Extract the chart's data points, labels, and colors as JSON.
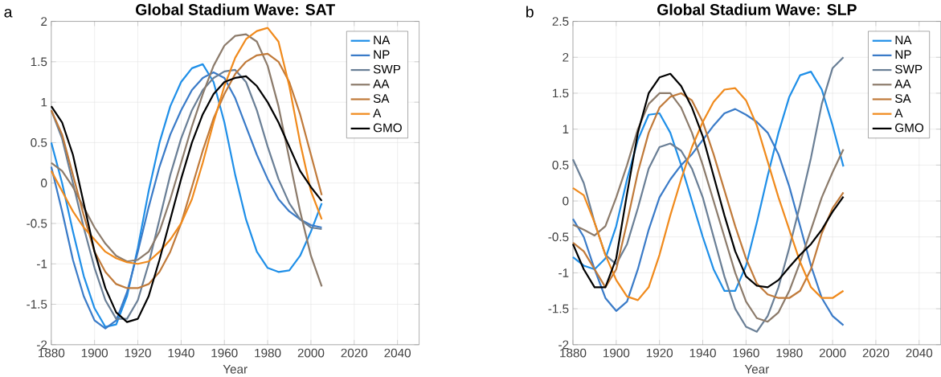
{
  "chart_data": [
    {
      "type": "line",
      "title": "Global Stadium Wave: SAT",
      "xlabel": "Year",
      "annotations": [
        "a"
      ],
      "x": [
        1880,
        1885,
        1890,
        1895,
        1900,
        1905,
        1910,
        1915,
        1920,
        1925,
        1930,
        1935,
        1940,
        1945,
        1950,
        1955,
        1960,
        1965,
        1970,
        1975,
        1980,
        1985,
        1990,
        1995,
        2000,
        2005
      ],
      "xlim": [
        1880,
        2050
      ],
      "xticks": [
        1880,
        1900,
        1920,
        1940,
        1960,
        1980,
        2000,
        2020,
        2040
      ],
      "ylim": [
        -2,
        2
      ],
      "yticks": [
        -2,
        -1.5,
        -1,
        -0.5,
        0,
        0.5,
        1,
        1.5,
        2
      ],
      "grid": true,
      "legend": "top right",
      "marker": "none",
      "line_style": "solid",
      "series": [
        {
          "name": "NA",
          "color": "#1f8fe8",
          "values": [
            0.5,
            0.0,
            -0.6,
            -1.15,
            -1.55,
            -1.78,
            -1.75,
            -1.4,
            -0.8,
            -0.1,
            0.5,
            0.95,
            1.25,
            1.42,
            1.47,
            1.25,
            0.75,
            0.1,
            -0.45,
            -0.85,
            -1.05,
            -1.1,
            -1.08,
            -0.9,
            -0.6,
            -0.25
          ]
        },
        {
          "name": "NP",
          "color": "#3a7bc8",
          "values": [
            0.2,
            -0.35,
            -0.95,
            -1.4,
            -1.7,
            -1.8,
            -1.7,
            -1.35,
            -0.85,
            -0.3,
            0.2,
            0.6,
            0.9,
            1.15,
            1.3,
            1.37,
            1.3,
            1.05,
            0.7,
            0.35,
            0.05,
            -0.2,
            -0.35,
            -0.45,
            -0.52,
            -0.55
          ]
        },
        {
          "name": "SWP",
          "color": "#6a7f96",
          "values": [
            0.9,
            0.55,
            0.0,
            -0.55,
            -1.05,
            -1.45,
            -1.68,
            -1.68,
            -1.45,
            -1.0,
            -0.45,
            0.1,
            0.55,
            0.9,
            1.15,
            1.3,
            1.38,
            1.4,
            1.25,
            0.9,
            0.45,
            0.05,
            -0.25,
            -0.45,
            -0.55,
            -0.57
          ]
        },
        {
          "name": "AA",
          "color": "#8c7b6b",
          "values": [
            0.25,
            0.15,
            -0.05,
            -0.3,
            -0.55,
            -0.75,
            -0.9,
            -0.97,
            -0.95,
            -0.85,
            -0.6,
            -0.2,
            0.25,
            0.7,
            1.1,
            1.45,
            1.7,
            1.82,
            1.84,
            1.75,
            1.45,
            0.95,
            0.3,
            -0.35,
            -0.9,
            -1.28
          ]
        },
        {
          "name": "SA",
          "color": "#c07a3a",
          "values": [
            0.9,
            0.6,
            0.1,
            -0.4,
            -0.85,
            -1.1,
            -1.25,
            -1.3,
            -1.3,
            -1.25,
            -1.1,
            -0.85,
            -0.5,
            -0.05,
            0.4,
            0.8,
            1.1,
            1.35,
            1.5,
            1.58,
            1.6,
            1.5,
            1.25,
            0.85,
            0.35,
            -0.15
          ]
        },
        {
          "name": "A",
          "color": "#f08a1c",
          "values": [
            0.15,
            -0.1,
            -0.35,
            -0.55,
            -0.7,
            -0.85,
            -0.93,
            -0.98,
            -1.0,
            -0.97,
            -0.85,
            -0.7,
            -0.5,
            -0.2,
            0.25,
            0.75,
            1.2,
            1.55,
            1.78,
            1.88,
            1.92,
            1.75,
            1.2,
            0.5,
            -0.1,
            -0.45
          ]
        },
        {
          "name": "GMO",
          "color": "#000000",
          "values": [
            0.95,
            0.75,
            0.35,
            -0.25,
            -0.85,
            -1.3,
            -1.6,
            -1.72,
            -1.68,
            -1.4,
            -0.95,
            -0.45,
            0.05,
            0.5,
            0.85,
            1.1,
            1.25,
            1.3,
            1.32,
            1.2,
            1.0,
            0.75,
            0.45,
            0.15,
            -0.05,
            -0.22
          ]
        }
      ]
    },
    {
      "type": "line",
      "title": "Global Stadium Wave: SLP",
      "xlabel": "Year",
      "annotations": [
        "b"
      ],
      "x": [
        1880,
        1885,
        1890,
        1895,
        1900,
        1905,
        1910,
        1915,
        1920,
        1925,
        1930,
        1935,
        1940,
        1945,
        1950,
        1955,
        1960,
        1965,
        1970,
        1975,
        1980,
        1985,
        1990,
        1995,
        2000,
        2005
      ],
      "xlim": [
        1880,
        2050
      ],
      "xticks": [
        1880,
        1900,
        1920,
        1940,
        1960,
        1980,
        2000,
        2020,
        2040
      ],
      "ylim": [
        -2,
        2.5
      ],
      "yticks": [
        -2,
        -1.5,
        -1,
        -0.5,
        0,
        0.5,
        1,
        1.5,
        2,
        2.5
      ],
      "grid": true,
      "legend": "top right",
      "marker": "none",
      "line_style": "solid",
      "series": [
        {
          "name": "NA",
          "color": "#1f8fe8",
          "values": [
            -0.78,
            -0.9,
            -0.95,
            -0.8,
            -0.35,
            0.3,
            0.85,
            1.2,
            1.22,
            0.95,
            0.5,
            0.0,
            -0.5,
            -0.95,
            -1.25,
            -1.25,
            -0.9,
            -0.3,
            0.35,
            0.95,
            1.45,
            1.75,
            1.8,
            1.55,
            1.05,
            0.48
          ]
        },
        {
          "name": "NP",
          "color": "#3a7bc8",
          "values": [
            -0.25,
            -0.5,
            -0.95,
            -1.35,
            -1.53,
            -1.4,
            -0.95,
            -0.4,
            0.05,
            0.3,
            0.5,
            0.65,
            0.85,
            1.05,
            1.22,
            1.28,
            1.2,
            1.1,
            0.95,
            0.65,
            0.2,
            -0.35,
            -0.9,
            -1.35,
            -1.6,
            -1.73
          ]
        },
        {
          "name": "SWP",
          "color": "#6a7f96",
          "values": [
            0.58,
            0.25,
            -0.3,
            -0.75,
            -0.88,
            -0.6,
            -0.1,
            0.45,
            0.75,
            0.8,
            0.7,
            0.45,
            0.05,
            -0.5,
            -1.05,
            -1.5,
            -1.75,
            -1.82,
            -1.6,
            -1.2,
            -0.65,
            -0.05,
            0.6,
            1.35,
            1.85,
            2.0
          ]
        },
        {
          "name": "AA",
          "color": "#8c7b6b",
          "values": [
            -0.33,
            -0.4,
            -0.48,
            -0.35,
            0.05,
            0.5,
            1.0,
            1.35,
            1.5,
            1.5,
            1.3,
            0.95,
            0.5,
            0.0,
            -0.5,
            -1.0,
            -1.4,
            -1.63,
            -1.68,
            -1.55,
            -1.25,
            -0.85,
            -0.4,
            0.05,
            0.4,
            0.72
          ]
        },
        {
          "name": "SA",
          "color": "#c07a3a",
          "values": [
            -0.58,
            -0.7,
            -0.95,
            -1.2,
            -0.95,
            -0.3,
            0.4,
            0.95,
            1.3,
            1.45,
            1.5,
            1.4,
            1.1,
            0.65,
            0.15,
            -0.35,
            -0.8,
            -1.15,
            -1.3,
            -1.35,
            -1.35,
            -1.25,
            -0.95,
            -0.45,
            -0.1,
            0.12
          ]
        },
        {
          "name": "A",
          "color": "#f08a1c",
          "values": [
            0.18,
            0.08,
            -0.3,
            -0.75,
            -1.1,
            -1.33,
            -1.38,
            -1.2,
            -0.75,
            -0.2,
            0.3,
            0.75,
            1.1,
            1.38,
            1.55,
            1.57,
            1.4,
            1.05,
            0.55,
            0.05,
            -0.4,
            -0.85,
            -1.2,
            -1.35,
            -1.35,
            -1.25
          ]
        },
        {
          "name": "GMO",
          "color": "#000000",
          "values": [
            -0.6,
            -0.95,
            -1.2,
            -1.2,
            -0.8,
            0.1,
            0.95,
            1.5,
            1.72,
            1.77,
            1.6,
            1.3,
            0.9,
            0.35,
            -0.2,
            -0.7,
            -1.05,
            -1.18,
            -1.2,
            -1.1,
            -0.92,
            -0.75,
            -0.6,
            -0.4,
            -0.15,
            0.06
          ]
        }
      ]
    }
  ]
}
